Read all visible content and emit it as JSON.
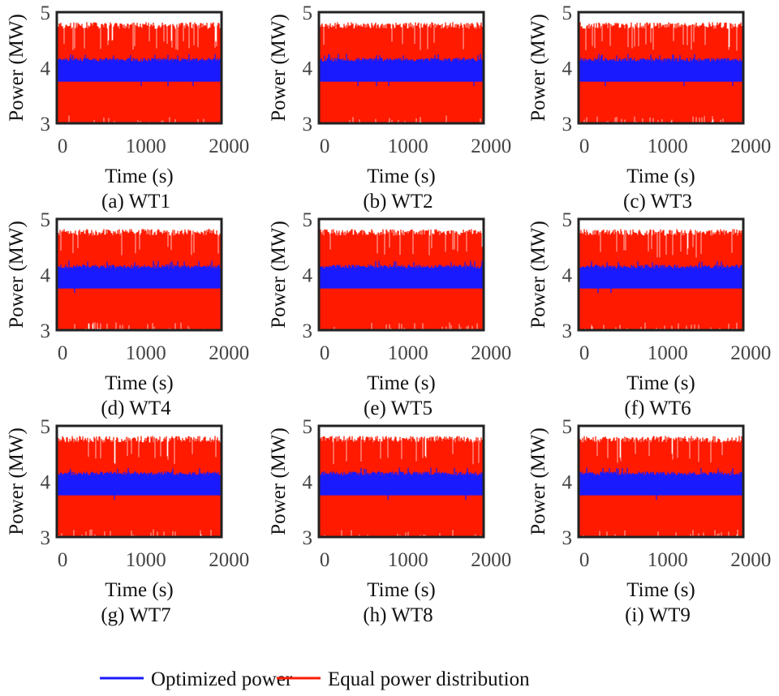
{
  "chart_data": {
    "type": "line",
    "layout": "3x3 grid of subplots",
    "xlabel": "Time (s)",
    "ylabel": "Power (MW)",
    "xlim": [
      -70,
      1910
    ],
    "ylim": [
      3,
      5
    ],
    "xticks": [
      "0",
      "1000",
      "2000"
    ],
    "xtick_values": [
      0,
      1000,
      2000
    ],
    "yticks": [
      "3",
      "4",
      "5"
    ],
    "ytick_values": [
      3,
      4,
      5
    ],
    "grid": false,
    "legend_placement": "bottom-center",
    "series": [
      {
        "name": "Optimized power",
        "color": "#1a1aff",
        "min": 3.75,
        "typical_max": 4.15,
        "peak_max": 4.25
      },
      {
        "name": "Equal power distribution",
        "color": "#ff1a00",
        "min": 3.0,
        "typical_max": 4.75,
        "peak_max": 4.85
      }
    ],
    "panels": [
      {
        "caption": "(a) WT1"
      },
      {
        "caption": "(b) WT2"
      },
      {
        "caption": "(c) WT3"
      },
      {
        "caption": "(d) WT4"
      },
      {
        "caption": "(e) WT5"
      },
      {
        "caption": "(f) WT6"
      },
      {
        "caption": "(g) WT7"
      },
      {
        "caption": "(h) WT8"
      },
      {
        "caption": "(i) WT9"
      }
    ]
  }
}
